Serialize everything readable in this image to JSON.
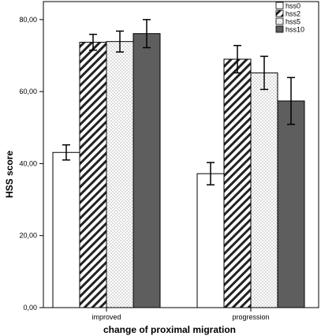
{
  "chart_data": {
    "type": "bar",
    "xlabel": "change of proximal migration",
    "ylabel": "HSS score",
    "categories": [
      "improved",
      "progression"
    ],
    "ylim": [
      0,
      85
    ],
    "yticks": [
      "0,00",
      "20,00",
      "40,00",
      "60,00",
      "80,00"
    ],
    "ytick_values": [
      0,
      20,
      40,
      60,
      80
    ],
    "legend_position": "top-right",
    "error_bars": true,
    "series": [
      {
        "name": "hss0",
        "pattern": "white",
        "values": [
          43.1,
          37.2
        ],
        "err_low": [
          41.0,
          34.1
        ],
        "err_high": [
          45.2,
          40.3
        ]
      },
      {
        "name": "hss2",
        "pattern": "diagonal",
        "values": [
          73.7,
          69.0
        ],
        "err_low": [
          71.5,
          65.2
        ],
        "err_high": [
          75.9,
          72.8
        ]
      },
      {
        "name": "hss5",
        "pattern": "dots",
        "values": [
          73.9,
          65.2
        ],
        "err_low": [
          71.0,
          60.6
        ],
        "err_high": [
          76.8,
          69.8
        ]
      },
      {
        "name": "hss10",
        "pattern": "darkgray",
        "values": [
          76.1,
          57.4
        ],
        "err_low": [
          72.2,
          50.9
        ],
        "err_high": [
          80.0,
          63.9
        ]
      }
    ]
  }
}
